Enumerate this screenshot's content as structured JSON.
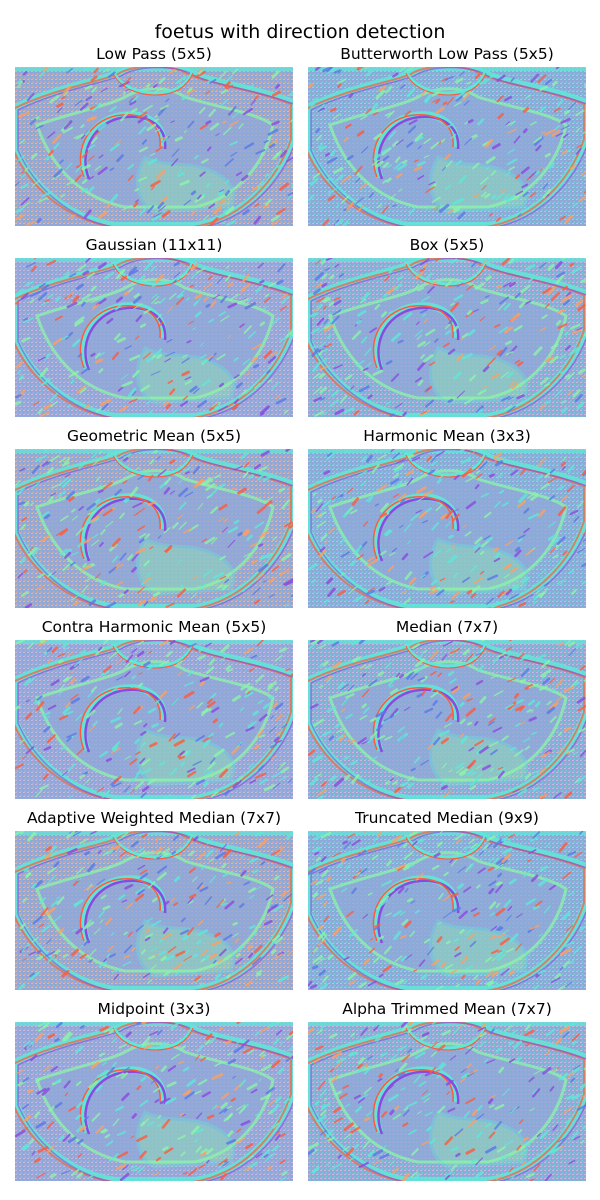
{
  "figure": {
    "title": "foetus with direction detection"
  },
  "panels": [
    {
      "title": "Low Pass (5x5)",
      "variant": "low-pass"
    },
    {
      "title": "Butterworth Low Pass (5x5)",
      "variant": "butterworth-low-pass"
    },
    {
      "title": "Gaussian (11x11)",
      "variant": "gaussian"
    },
    {
      "title": "Box (5x5)",
      "variant": "box"
    },
    {
      "title": "Geometric Mean (5x5)",
      "variant": "geometric-mean"
    },
    {
      "title": "Harmonic Mean (3x3)",
      "variant": "harmonic-mean"
    },
    {
      "title": "Contra Harmonic Mean (5x5)",
      "variant": "contra-harmonic-mean"
    },
    {
      "title": "Median (7x7)",
      "variant": "median"
    },
    {
      "title": "Adaptive Weighted Median (7x7)",
      "variant": "adaptive-weighted-median"
    },
    {
      "title": "Truncated Median (9x9)",
      "variant": "truncated-median"
    },
    {
      "title": "Midpoint (3x3)",
      "variant": "midpoint"
    },
    {
      "title": "Alpha Trimmed Mean (7x7)",
      "variant": "alpha-trimmed-mean"
    }
  ],
  "colors": {
    "background": "#8fa8d8",
    "cyan": "#5fe8d8",
    "green": "#8cf5a8",
    "blue": "#5a78e8",
    "red": "#ff5a3c",
    "orange": "#ffa060",
    "purple": "#8a4ae0",
    "pale": "#c8b8e0"
  }
}
